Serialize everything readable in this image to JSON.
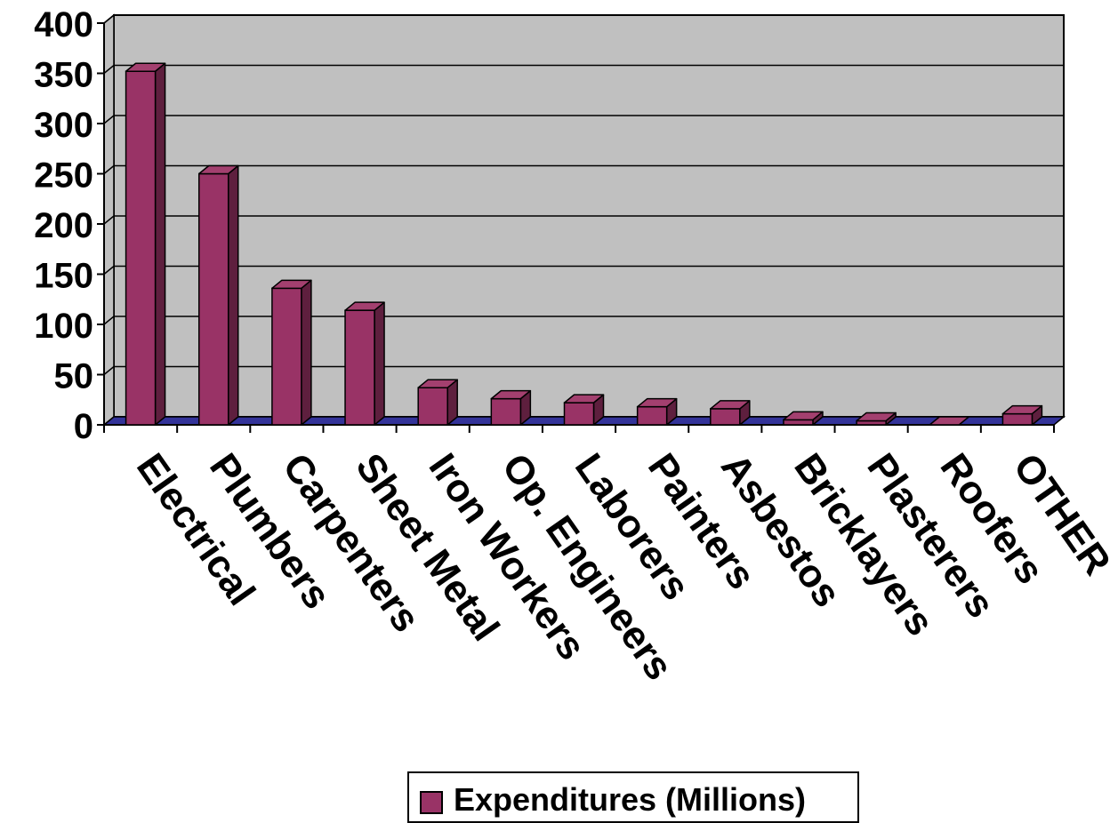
{
  "chart_data": {
    "type": "bar",
    "categories": [
      "Electrical",
      "Plumbers",
      "Carpenters",
      "Sheet Metal",
      "Iron Workers",
      "Op. Engineers",
      "Laborers",
      "Painters",
      "Asbestos",
      "Bricklayers",
      "Plasterers",
      "Roofers",
      "OTHER"
    ],
    "series": [
      {
        "name": "Expenditures (Millions)",
        "values": [
          352,
          250,
          136,
          114,
          37,
          26,
          22,
          18,
          16,
          5,
          4,
          0,
          11
        ]
      }
    ],
    "ylim": [
      0,
      400
    ],
    "yticks": [
      "0",
      "50",
      "100",
      "150",
      "200",
      "250",
      "300",
      "350",
      "400"
    ],
    "grid": true,
    "three_d": true,
    "legend_position": "bottom",
    "colors": {
      "bar_front": "#993366",
      "bar_top": "#a3406f",
      "bar_side": "#5e1f3e",
      "plot_wall": "#c0c0c0",
      "floor": "#333399",
      "gridline": "#000000"
    }
  }
}
